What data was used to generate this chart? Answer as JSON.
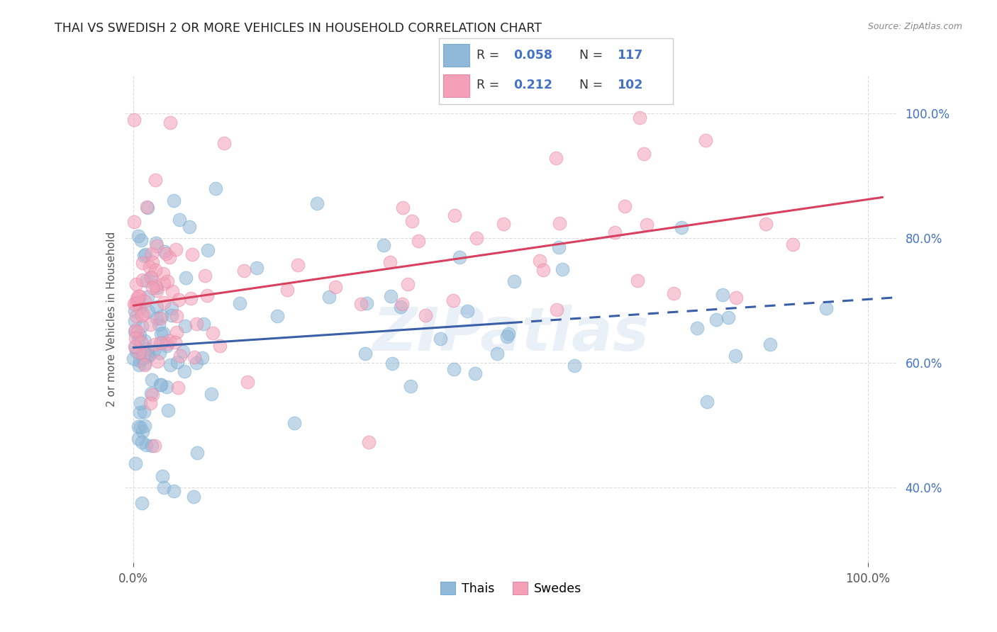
{
  "title": "THAI VS SWEDISH 2 OR MORE VEHICLES IN HOUSEHOLD CORRELATION CHART",
  "source": "Source: ZipAtlas.com",
  "ylabel": "2 or more Vehicles in Household",
  "watermark": "ZIPatlas",
  "legend_thai": "Thais",
  "legend_swedes": "Swedes",
  "R_thai": 0.058,
  "N_thai": 117,
  "R_swedes": 0.212,
  "N_swedes": 102,
  "thai_color": "#90b8d8",
  "swedes_color": "#f4a0b8",
  "thai_edge_color": "#7aafd4",
  "swedes_edge_color": "#e888a8",
  "thai_line_color": "#3a5fa8",
  "swedes_line_color": "#d94060",
  "grid_color": "#cccccc",
  "tick_label_color": "#4472c4",
  "title_color": "#222222",
  "ylabel_color": "#555555",
  "legend_border_color": "#cccccc",
  "legend_R_color": "#333333",
  "legend_N_color": "#4472c4",
  "watermark_color": "#c8d8ea"
}
